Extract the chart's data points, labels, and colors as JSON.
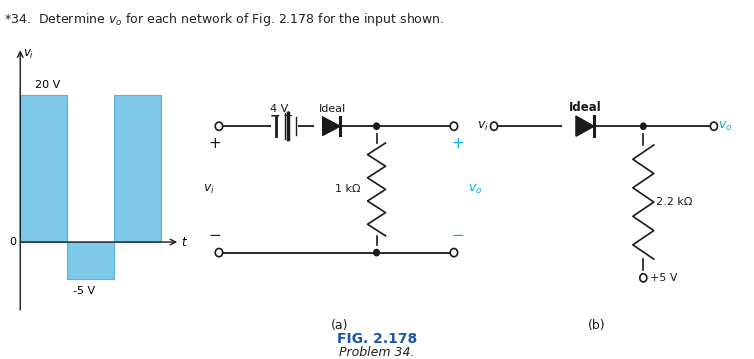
{
  "title": "*34.  Determine $v_o$ for each network of Fig. 2.178 for the input shown.",
  "fig_label": "FIG. 2.178",
  "fig_sublabel": "Problem 34.",
  "label_a": "(a)",
  "label_b": "(b)",
  "waveform": {
    "label_pos": "20 V",
    "label_neg": "-5 V",
    "vi_label": "$v_i$",
    "t_label": "$t$",
    "bar_color": "#7ec8e8",
    "bar_edge": "#5ab0d8"
  },
  "circuit_a": {
    "battery_label": "4 V",
    "diode_label": "Ideal",
    "resistor_label": "1 kΩ",
    "vo_label": "$v_o$",
    "vi_label": "$v_i$"
  },
  "circuit_b": {
    "diode_label": "Ideal",
    "resistor_label": "2.2 kΩ",
    "voltage_label": "+5 V",
    "vi_label": "$v_i$",
    "vo_label": "$v_o$"
  },
  "colors": {
    "cyan": "#00aeef",
    "black": "#1a1a1a",
    "blue_fig": "#1a56b0",
    "bar_fill": "#7ec8e8",
    "bar_edge": "#5ab0d8",
    "text": "#222222"
  }
}
